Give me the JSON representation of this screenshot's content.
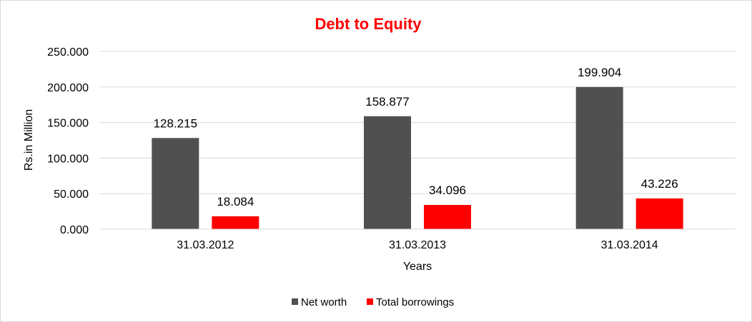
{
  "chart_data": {
    "type": "bar",
    "title": "Debt to Equity",
    "xlabel": "Years",
    "ylabel": "Rs.in Million",
    "categories": [
      "31.03.2012",
      "31.03.2013",
      "31.03.2014"
    ],
    "series": [
      {
        "name": "Net worth",
        "values": [
          128.215,
          158.877,
          199.904
        ],
        "labels": [
          "128.215",
          "158.877",
          "199.904"
        ],
        "color": "#505050"
      },
      {
        "name": "Total borrowings",
        "values": [
          18.084,
          34.096,
          43.226
        ],
        "labels": [
          "18.084",
          "34.096",
          "43.226"
        ],
        "color": "#ff0000"
      }
    ],
    "ylim": [
      0,
      250
    ],
    "yticks": [
      0,
      50,
      100,
      150,
      200,
      250
    ],
    "ytick_labels": [
      "0.000",
      "50.000",
      "100.000",
      "150.000",
      "200.000",
      "250.000"
    ],
    "grid": true,
    "legend": "bottom",
    "title_color": "#ff0000"
  }
}
